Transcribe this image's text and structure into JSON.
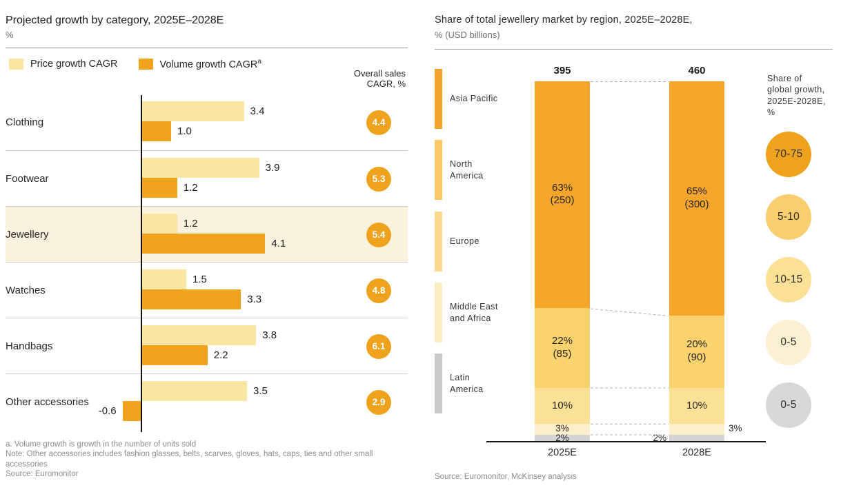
{
  "left_chart": {
    "title": "Projected growth by category, 2025E–2028E",
    "unit_label": "%",
    "legend": [
      {
        "label": "Price growth CAGR",
        "superscript": "",
        "color": "#F9E6A2"
      },
      {
        "label": "Volume growth CAGR",
        "superscript": "a",
        "color": "#F0A31C"
      }
    ],
    "overall_label_lines": [
      "Overall sales",
      "CAGR, %"
    ],
    "overall_badge_color": "#EFA31D",
    "highlight_row_color": "#FBF2DE",
    "footnotes": [
      "a. Volume growth is growth in the number of units sold",
      "Note: Other accessories includes fashion glasses, belts, scarves, gloves, hats, caps, ties and other small accessories",
      "Source: Euromonitor"
    ]
  },
  "right_chart": {
    "title": "Share of total jewellery market by region, 2025E–2028E,",
    "unit_label": "% (USD billions)",
    "growth_header_lines": [
      "Share of",
      "global growth,",
      "2025E-2028E,",
      "%"
    ],
    "source": "Source: Euromonitor, McKinsey analysis"
  },
  "chart_data": [
    {
      "type": "bar",
      "orientation": "horizontal",
      "title": "Projected growth by category, 2025E–2028E",
      "unit": "%",
      "categories": [
        "Clothing",
        "Footwear",
        "Jewellery",
        "Watches",
        "Handbags",
        "Other accessories"
      ],
      "series": [
        {
          "name": "Price growth CAGR",
          "color": "#F9E6A2",
          "values": [
            3.4,
            3.9,
            1.2,
            1.5,
            3.8,
            3.5
          ]
        },
        {
          "name": "Volume growth CAGR",
          "color": "#F0A31C",
          "values": [
            1.0,
            1.2,
            4.1,
            3.3,
            2.2,
            -0.6
          ]
        }
      ],
      "overall_sales_cagr": [
        4.4,
        5.3,
        5.4,
        4.8,
        6.1,
        2.9
      ],
      "highlighted_category": "Jewellery",
      "value_format": "one_decimal"
    },
    {
      "type": "stacked-bar",
      "normalized_pct": true,
      "title": "Share of total jewellery market by region, 2025E–2028E,",
      "unit": "% (USD billions)",
      "categories": [
        "2025E",
        "2028E"
      ],
      "totals_usd_billions": [
        395,
        460
      ],
      "series": [
        {
          "name": "Asia Pacific",
          "name_lines": "Asia Pacific",
          "color": "#F5A62B",
          "legend_color": "#F5A42B",
          "pct": [
            63,
            65
          ],
          "usd": [
            250,
            300
          ]
        },
        {
          "name": "North America",
          "name_lines": "North\nAmerica",
          "color": "#FBD36E",
          "legend_color": "#F9C766",
          "pct": [
            22,
            20
          ],
          "usd": [
            85,
            90
          ]
        },
        {
          "name": "Europe",
          "name_lines": "Europe",
          "color": "#FBE196",
          "legend_color": "#FBD98F",
          "pct": [
            10,
            10
          ],
          "usd": [
            null,
            null
          ]
        },
        {
          "name": "Middle East and Africa",
          "name_lines": "Middle East\nand Africa",
          "color": "#FCEFC9",
          "legend_color": "#FCEDC4",
          "pct": [
            3,
            3
          ],
          "usd": [
            null,
            null
          ]
        },
        {
          "name": "Latin America",
          "name_lines": "Latin\nAmerica",
          "color": "#D4D4D4",
          "legend_color": "#C9C9C9",
          "pct": [
            2,
            2
          ],
          "usd": [
            null,
            null
          ]
        }
      ],
      "growth_share_circles": [
        {
          "label": "70-75",
          "color": "#EFA31D"
        },
        {
          "label": "5-10",
          "color": "#FACD6E"
        },
        {
          "label": "10-15",
          "color": "#FBE096"
        },
        {
          "label": "0-5",
          "color": "#FDF0D2"
        },
        {
          "label": "0-5",
          "color": "#D8D8D8"
        }
      ]
    }
  ]
}
